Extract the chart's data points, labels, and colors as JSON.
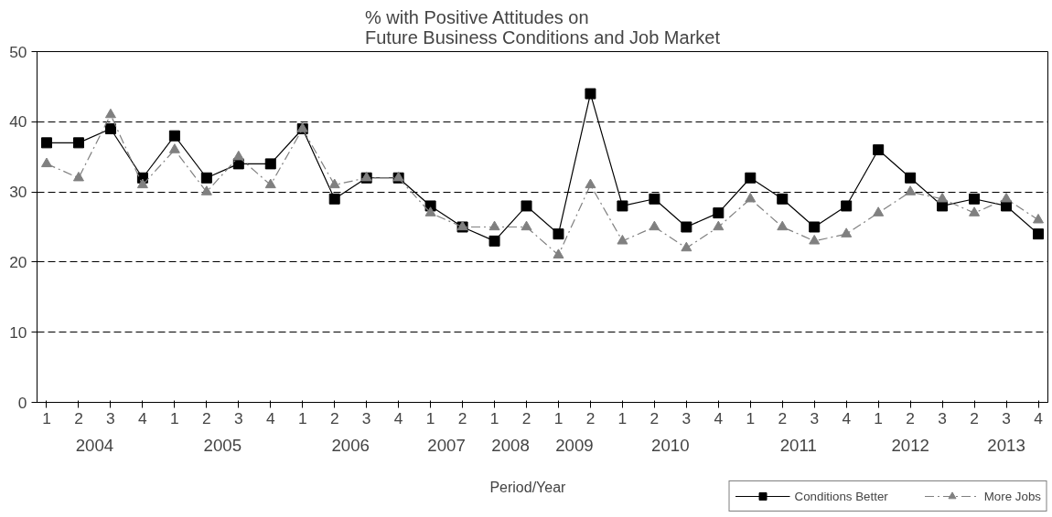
{
  "chart_data": {
    "type": "line",
    "title": "% with Positive Attitudes on\nFuture Business Conditions and Job Market",
    "xlabel": "Period/Year",
    "categories": [
      "1",
      "2",
      "3",
      "4",
      "1",
      "2",
      "3",
      "4",
      "1",
      "2",
      "3",
      "4",
      "1",
      "2",
      "1",
      "2",
      "1",
      "2",
      "1",
      "2",
      "3",
      "4",
      "1",
      "2",
      "3",
      "4",
      "1",
      "2",
      "3",
      "2",
      "3",
      "4"
    ],
    "annotations": [
      "2004",
      "2005",
      "2006",
      "2007",
      "2008",
      "2009",
      "2010",
      "2011",
      "2012",
      "2013"
    ],
    "series": [
      {
        "name": "Conditions Better",
        "color": "#000000",
        "marker": "square",
        "line_style": "solid",
        "values": [
          37,
          37,
          39,
          32,
          38,
          32,
          34,
          34,
          39,
          29,
          32,
          32,
          28,
          25,
          23,
          28,
          24,
          44,
          28,
          29,
          25,
          27,
          32,
          29,
          25,
          28,
          36,
          32,
          28,
          29,
          28,
          24
        ]
      },
      {
        "name": "More Jobs",
        "color": "#808080",
        "marker": "triangle",
        "line_style": "dashed",
        "values": [
          34,
          32,
          41,
          31,
          36,
          30,
          35,
          31,
          39,
          31,
          32,
          32,
          27,
          25,
          25,
          25,
          21,
          31,
          23,
          25,
          22,
          25,
          29,
          25,
          23,
          24,
          27,
          30,
          29,
          27,
          29,
          26
        ]
      }
    ],
    "ylim": [
      0,
      50
    ],
    "yticks": [
      0,
      10,
      20,
      30,
      40,
      50
    ],
    "grid": "y",
    "legend": "bottom right"
  }
}
